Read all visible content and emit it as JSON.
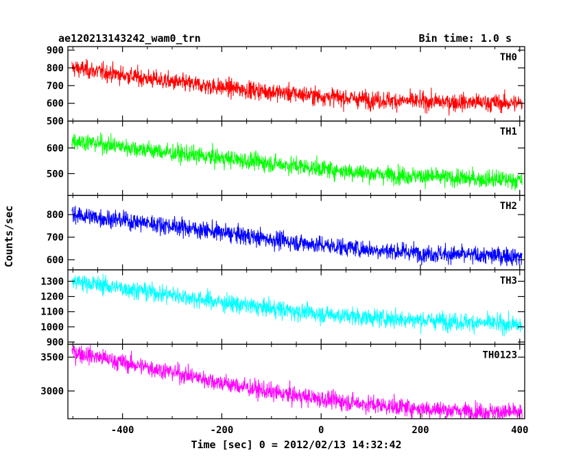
{
  "chart_data": {
    "type": "line",
    "title_left": "ae120213143242_wam0_trn",
    "title_right": "Bin time: 1.0 s",
    "xlabel": "Time [sec] 0 = 2012/02/13 14:32:42",
    "ylabel": "Counts/sec",
    "xlim": [
      -510,
      410
    ],
    "xticks": [
      -400,
      -200,
      0,
      200,
      400
    ],
    "panels": [
      {
        "name": "TH0",
        "color": "#ff0000",
        "ylim": [
          500,
          920
        ],
        "yticks": [
          500,
          600,
          700,
          800,
          900
        ],
        "series": {
          "x": [
            -500,
            -400,
            -300,
            -200,
            -100,
            0,
            100,
            200,
            300,
            400
          ],
          "values": [
            800,
            760,
            720,
            690,
            665,
            640,
            620,
            610,
            605,
            600
          ]
        }
      },
      {
        "name": "TH1",
        "color": "#00ff00",
        "ylim": [
          415,
          705
        ],
        "yticks": [
          500,
          600
        ],
        "series": {
          "x": [
            -500,
            -400,
            -300,
            -200,
            -100,
            0,
            100,
            200,
            300,
            400
          ],
          "values": [
            630,
            605,
            580,
            560,
            540,
            520,
            500,
            490,
            480,
            475
          ]
        }
      },
      {
        "name": "TH2",
        "color": "#0000ff",
        "ylim": [
          555,
          885
        ],
        "yticks": [
          600,
          700,
          800
        ],
        "series": {
          "x": [
            -500,
            -400,
            -300,
            -200,
            -100,
            0,
            100,
            200,
            300,
            400
          ],
          "values": [
            800,
            775,
            750,
            720,
            690,
            665,
            645,
            630,
            620,
            615
          ]
        }
      },
      {
        "name": "TH3",
        "color": "#00ffff",
        "ylim": [
          885,
          1375
        ],
        "yticks": [
          900,
          1000,
          1100,
          1200,
          1300
        ],
        "series": {
          "x": [
            -500,
            -400,
            -300,
            -200,
            -100,
            0,
            100,
            200,
            300,
            400
          ],
          "values": [
            1300,
            1255,
            1210,
            1160,
            1120,
            1085,
            1060,
            1045,
            1030,
            1010
          ]
        }
      },
      {
        "name": "TH0123",
        "color": "#ff00ff",
        "ylim": [
          2590,
          3690
        ],
        "yticks": [
          3000,
          3500
        ],
        "series": {
          "x": [
            -500,
            -400,
            -300,
            -200,
            -100,
            0,
            100,
            200,
            300,
            400
          ],
          "values": [
            3580,
            3420,
            3280,
            3120,
            2980,
            2880,
            2800,
            2740,
            2700,
            2680
          ]
        }
      }
    ]
  }
}
